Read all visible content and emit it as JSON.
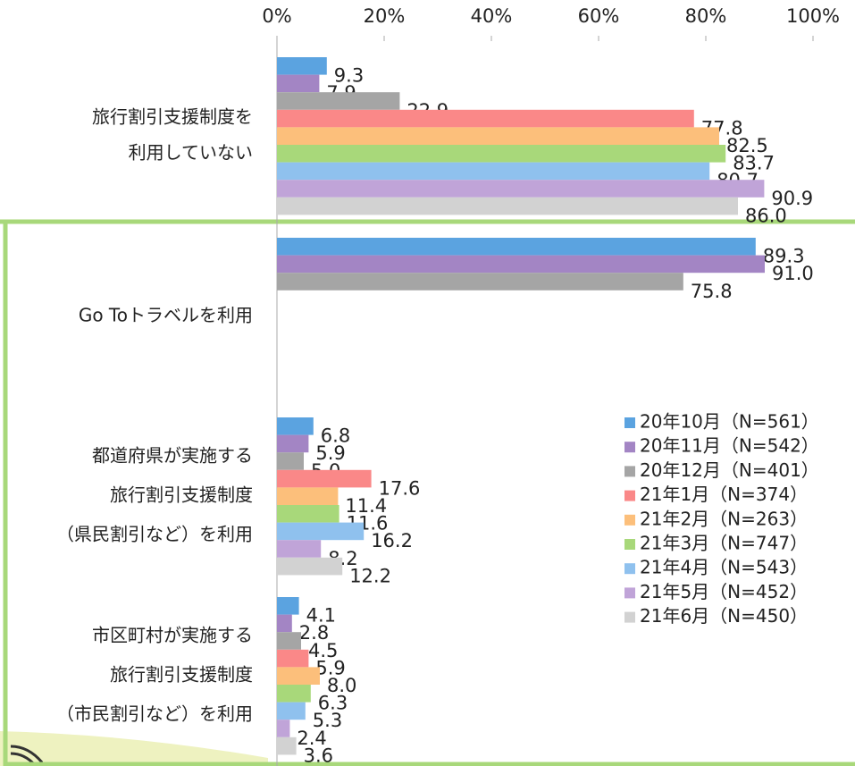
{
  "chart_data": {
    "type": "bar",
    "orientation": "horizontal",
    "categories": [
      [
        "旅行割引支援制度を",
        "利用していない"
      ],
      [
        "Go Toトラベルを利用"
      ],
      [
        "都道府県が実施する",
        "旅行割引支援制度",
        "（県民割引など）を利用"
      ],
      [
        "市区町村が実施する",
        "旅行割引支援制度",
        "（市民割引など）を利用"
      ]
    ],
    "xlim": [
      0,
      100
    ],
    "xticks": [
      {
        "value": 0,
        "label": "0%"
      },
      {
        "value": 20,
        "label": "20%"
      },
      {
        "value": 40,
        "label": "40%"
      },
      {
        "value": 60,
        "label": "60%"
      },
      {
        "value": 80,
        "label": "80%"
      },
      {
        "value": 100,
        "label": "100%"
      }
    ],
    "legend": "lower right",
    "series": [
      {
        "name": "20年10月（N=561）",
        "color": "#5ba3e0",
        "values": [
          9.3,
          89.3,
          6.8,
          4.1
        ],
        "value_labels": [
          "9.3",
          "89.3",
          "6.8",
          "4.1"
        ]
      },
      {
        "name": "20年11月（N=542）",
        "color": "#a385c4",
        "values": [
          7.9,
          91.0,
          5.9,
          2.8
        ],
        "value_labels": [
          "7.9",
          "91.0",
          "5.9",
          "2.8"
        ]
      },
      {
        "name": "20年12月（N=401）",
        "color": "#a5a5a5",
        "values": [
          22.9,
          75.8,
          5.0,
          4.5
        ],
        "value_labels": [
          "22.9",
          "75.8",
          "5.0",
          "4.5"
        ]
      },
      {
        "name": "21年1月（N=374）",
        "color": "#fa8888",
        "values": [
          77.8,
          null,
          17.6,
          5.9
        ],
        "value_labels": [
          "77.8",
          null,
          "17.6",
          "5.9"
        ]
      },
      {
        "name": "21年2月（N=263）",
        "color": "#fcbf7b",
        "values": [
          82.5,
          null,
          11.4,
          8.0
        ],
        "value_labels": [
          "82.5",
          null,
          "11.4",
          "8.0"
        ]
      },
      {
        "name": "21年3月（N=747）",
        "color": "#a8d87a",
        "values": [
          83.7,
          null,
          11.6,
          6.3
        ],
        "value_labels": [
          "83.7",
          null,
          "11.6",
          "6.3"
        ]
      },
      {
        "name": "21年4月（N=543）",
        "color": "#8fc1ee",
        "values": [
          80.7,
          null,
          16.2,
          5.3
        ],
        "value_labels": [
          "80.7",
          null,
          "16.2",
          "5.3"
        ]
      },
      {
        "name": "21年5月（N=452）",
        "color": "#c0a4d8",
        "values": [
          90.9,
          null,
          8.2,
          2.4
        ],
        "value_labels": [
          "90.9",
          null,
          "8.2",
          "2.4"
        ]
      },
      {
        "name": "21年6月（N=450）",
        "color": "#d2d2d2",
        "values": [
          86.0,
          null,
          12.2,
          3.6
        ],
        "value_labels": [
          "86.0",
          null,
          "12.2",
          "3.6"
        ]
      }
    ]
  }
}
